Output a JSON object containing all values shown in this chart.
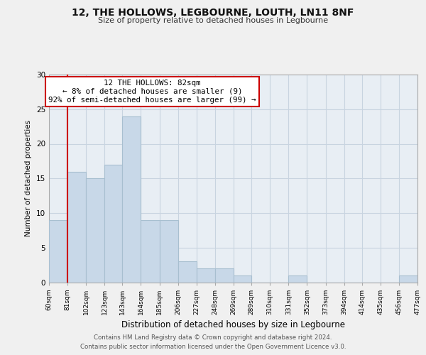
{
  "title": "12, THE HOLLOWS, LEGBOURNE, LOUTH, LN11 8NF",
  "subtitle": "Size of property relative to detached houses in Legbourne",
  "xlabel": "Distribution of detached houses by size in Legbourne",
  "ylabel": "Number of detached properties",
  "bar_edges": [
    60,
    81,
    102,
    123,
    143,
    164,
    185,
    206,
    227,
    248,
    269,
    289,
    310,
    331,
    352,
    373,
    394,
    414,
    435,
    456,
    477
  ],
  "bar_heights": [
    9,
    16,
    15,
    17,
    24,
    9,
    9,
    3,
    2,
    2,
    1,
    0,
    0,
    1,
    0,
    0,
    0,
    0,
    0,
    1
  ],
  "bar_color": "#c8d8e8",
  "bar_edgecolor": "#a8bfd0",
  "vline_x": 81,
  "vline_color": "#cc0000",
  "annotation_title": "12 THE HOLLOWS: 82sqm",
  "annotation_line1": "← 8% of detached houses are smaller (9)",
  "annotation_line2": "92% of semi-detached houses are larger (99) →",
  "annotation_box_facecolor": "#ffffff",
  "annotation_box_edgecolor": "#cc0000",
  "ylim": [
    0,
    30
  ],
  "yticks": [
    0,
    5,
    10,
    15,
    20,
    25,
    30
  ],
  "tick_labels": [
    "60sqm",
    "81sqm",
    "102sqm",
    "123sqm",
    "143sqm",
    "164sqm",
    "185sqm",
    "206sqm",
    "227sqm",
    "248sqm",
    "269sqm",
    "289sqm",
    "310sqm",
    "331sqm",
    "352sqm",
    "373sqm",
    "394sqm",
    "414sqm",
    "435sqm",
    "456sqm",
    "477sqm"
  ],
  "footer1": "Contains HM Land Registry data © Crown copyright and database right 2024.",
  "footer2": "Contains public sector information licensed under the Open Government Licence v3.0.",
  "bg_color": "#f0f0f0",
  "plot_bg_color": "#e8eef4",
  "grid_color": "#c8d4e0"
}
